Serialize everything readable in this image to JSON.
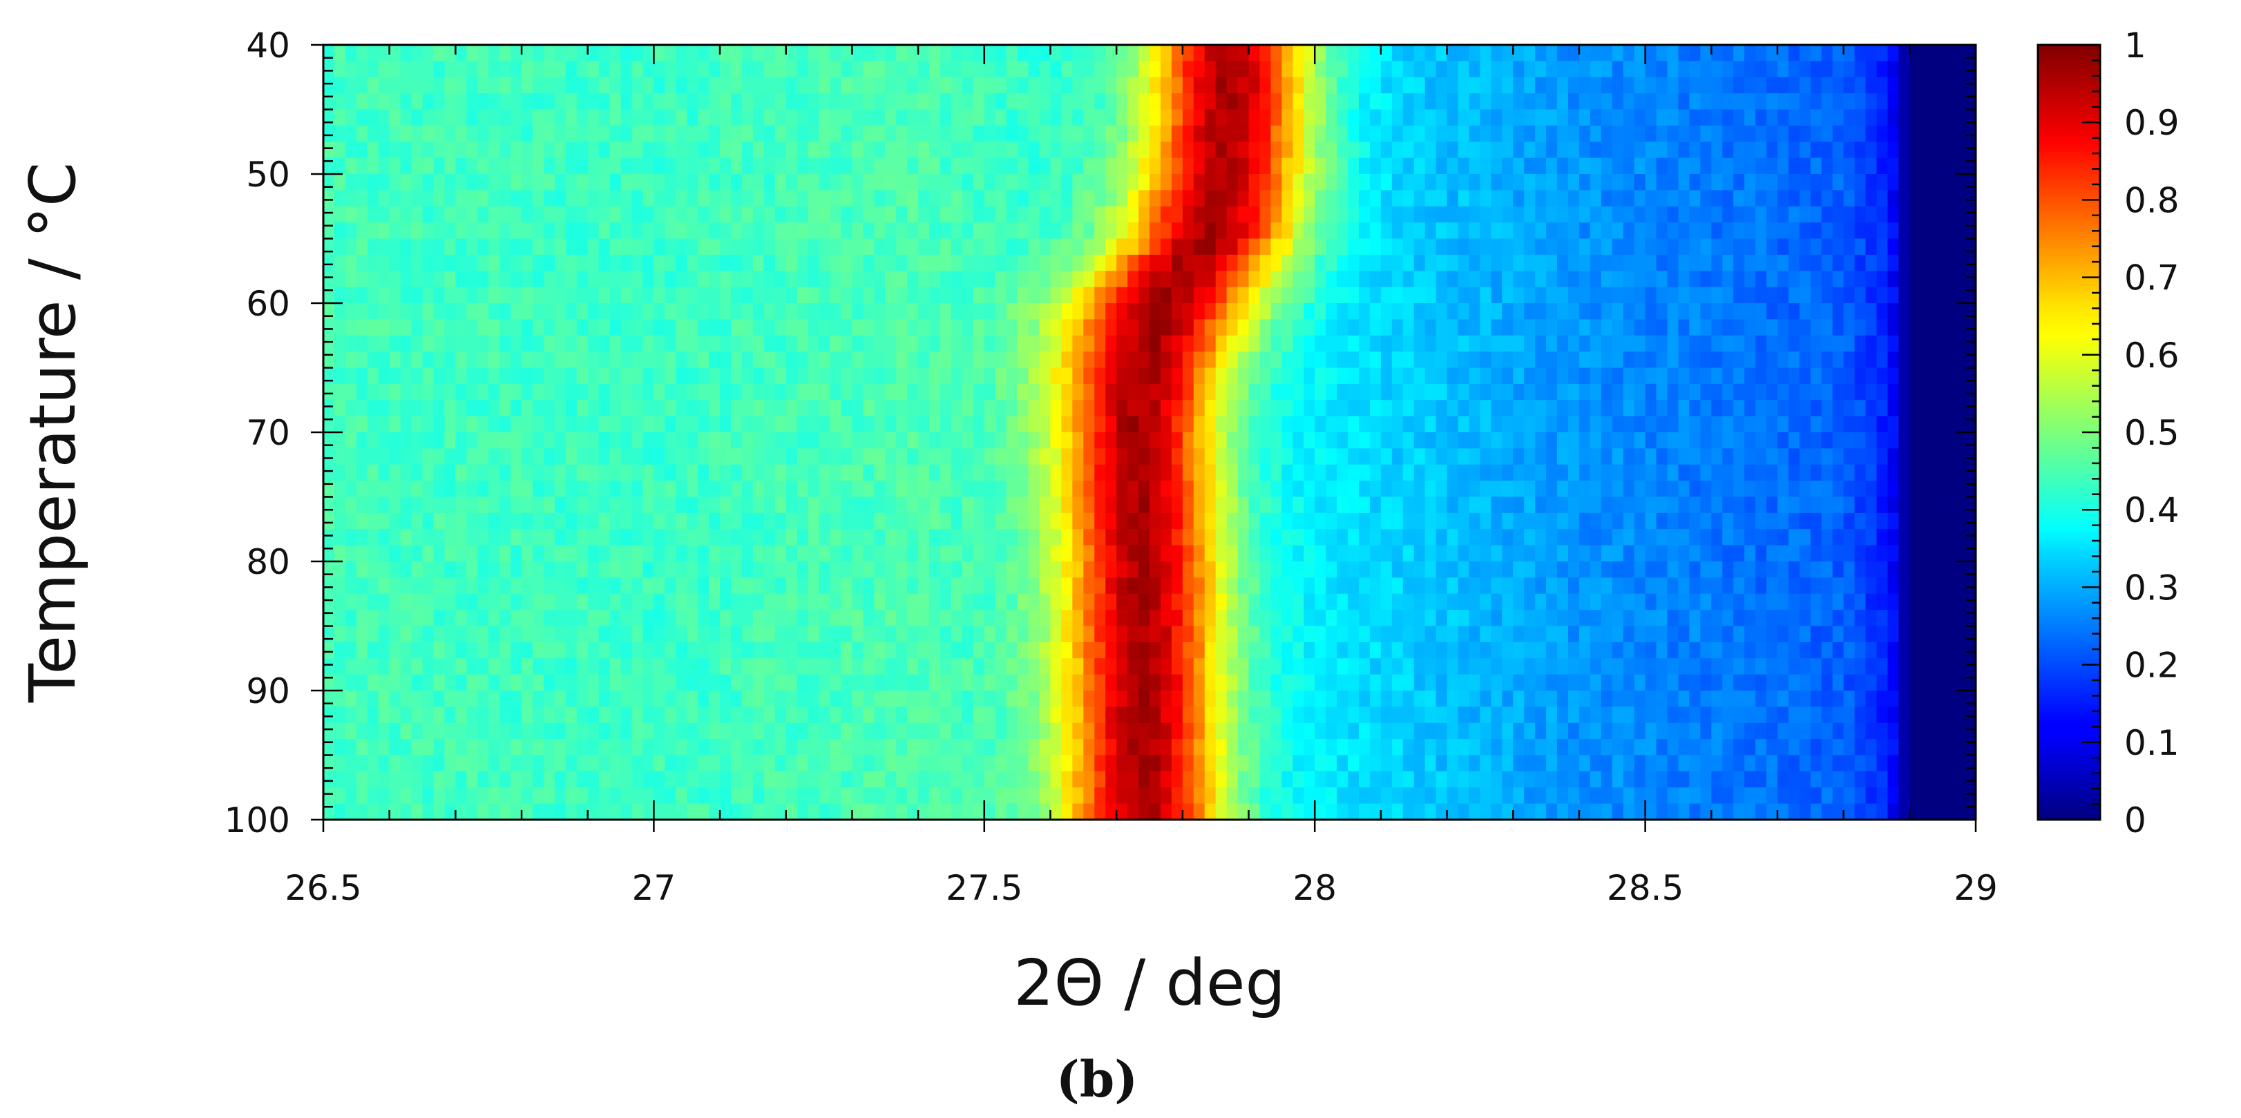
{
  "chart_data": {
    "type": "heatmap",
    "title": "",
    "xlabel": "2Θ / deg",
    "ylabel": "Temperature / °C",
    "caption": "(b)",
    "xlim": [
      26.5,
      29
    ],
    "ylim": [
      40,
      100
    ],
    "y_inverted": true,
    "x_ticks": [
      {
        "value": 26.5,
        "label": "26.5"
      },
      {
        "value": 27,
        "label": "27"
      },
      {
        "value": 27.5,
        "label": "27.5"
      },
      {
        "value": 28,
        "label": "28"
      },
      {
        "value": 28.5,
        "label": "28.5"
      },
      {
        "value": 29,
        "label": "29"
      }
    ],
    "y_ticks": [
      {
        "value": 40,
        "label": "40"
      },
      {
        "value": 50,
        "label": "50"
      },
      {
        "value": 60,
        "label": "60"
      },
      {
        "value": 70,
        "label": "70"
      },
      {
        "value": 80,
        "label": "80"
      },
      {
        "value": 90,
        "label": "90"
      },
      {
        "value": 100,
        "label": "100"
      }
    ],
    "colorbar": {
      "colormap": "jet",
      "range": [
        0,
        1
      ],
      "ticks": [
        {
          "value": 0,
          "label": "0"
        },
        {
          "value": 0.1,
          "label": "0.1"
        },
        {
          "value": 0.2,
          "label": "0.2"
        },
        {
          "value": 0.3,
          "label": "0.3"
        },
        {
          "value": 0.4,
          "label": "0.4"
        },
        {
          "value": 0.5,
          "label": "0.5"
        },
        {
          "value": 0.6,
          "label": "0.6"
        },
        {
          "value": 0.7,
          "label": "0.7"
        },
        {
          "value": 0.8,
          "label": "0.8"
        },
        {
          "value": 0.9,
          "label": "0.9"
        },
        {
          "value": 1,
          "label": "1"
        }
      ]
    },
    "peak_position_vs_temperature": [
      {
        "temperature": 40,
        "two_theta": 27.87,
        "fwhm": 0.2
      },
      {
        "temperature": 45,
        "two_theta": 27.87,
        "fwhm": 0.2
      },
      {
        "temperature": 50,
        "two_theta": 27.86,
        "fwhm": 0.21
      },
      {
        "temperature": 55,
        "two_theta": 27.84,
        "fwhm": 0.22
      },
      {
        "temperature": 60,
        "two_theta": 27.77,
        "fwhm": 0.24
      },
      {
        "temperature": 65,
        "two_theta": 27.74,
        "fwhm": 0.22
      },
      {
        "temperature": 70,
        "two_theta": 27.73,
        "fwhm": 0.2
      },
      {
        "temperature": 80,
        "two_theta": 27.74,
        "fwhm": 0.2
      },
      {
        "temperature": 90,
        "two_theta": 27.74,
        "fwhm": 0.2
      },
      {
        "temperature": 100,
        "two_theta": 27.74,
        "fwhm": 0.2
      }
    ],
    "background_profile": [
      {
        "two_theta": 26.5,
        "value": 0.44
      },
      {
        "two_theta": 27.0,
        "value": 0.43
      },
      {
        "two_theta": 27.4,
        "value": 0.45
      },
      {
        "two_theta": 28.0,
        "value": 0.36
      },
      {
        "two_theta": 28.4,
        "value": 0.27
      },
      {
        "two_theta": 28.8,
        "value": 0.22
      },
      {
        "two_theta": 28.87,
        "value": 0.15
      },
      {
        "two_theta": 28.9,
        "value": 0.0
      },
      {
        "two_theta": 29.0,
        "value": 0.0
      }
    ],
    "peak_intensity": 0.96,
    "grid": false,
    "legend": "none"
  }
}
